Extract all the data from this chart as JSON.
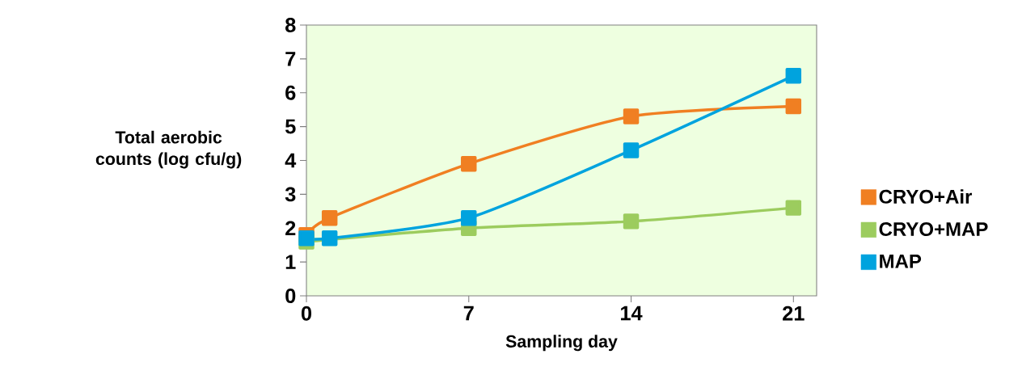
{
  "chart_data": {
    "type": "line",
    "xlabel": "Sampling day",
    "ylabel": "Total aerobic counts (log cfu/g)",
    "x": [
      0,
      1,
      7,
      14,
      21
    ],
    "xlim": [
      0,
      22
    ],
    "xticks": [
      0,
      7,
      14,
      21
    ],
    "ylim": [
      0,
      8
    ],
    "yticks": [
      0,
      1,
      2,
      3,
      4,
      5,
      6,
      7,
      8
    ],
    "marker": "square",
    "legend": "right",
    "grid": false,
    "series": [
      {
        "name": "CRYO+Air",
        "color": "#f07f22",
        "values": [
          1.8,
          2.3,
          3.9,
          5.3,
          5.6
        ]
      },
      {
        "name": "CRYO+MAP",
        "color": "#9ccc5e",
        "values": [
          1.6,
          null,
          2.0,
          2.2,
          2.6
        ]
      },
      {
        "name": "MAP",
        "color": "#00a3de",
        "values": [
          1.7,
          1.7,
          2.3,
          4.3,
          6.5
        ]
      }
    ]
  }
}
